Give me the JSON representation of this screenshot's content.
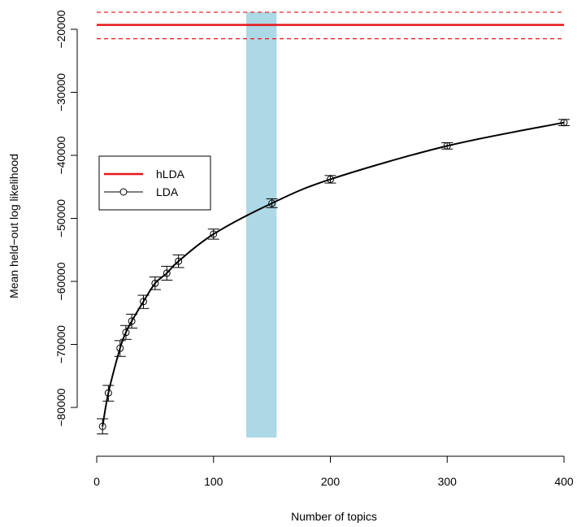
{
  "chart_data": {
    "type": "line",
    "title": "",
    "xlabel": "Number of topics",
    "ylabel": "Mean held−out log likelihood",
    "xlim": [
      0,
      400
    ],
    "ylim": [
      -85000,
      -17000
    ],
    "x_ticks": [
      0,
      100,
      200,
      300,
      400
    ],
    "x_tick_labels": [
      "0",
      "100",
      "200",
      "300",
      "400"
    ],
    "y_ticks": [
      -80000,
      -70000,
      -60000,
      -50000,
      -40000,
      -30000,
      -20000
    ],
    "y_tick_labels": [
      "−80000",
      "−70000",
      "−60000",
      "−50000",
      "−40000",
      "−30000",
      "−20000"
    ],
    "grid": false,
    "legend": {
      "position": "left",
      "entries": [
        {
          "label": "hLDA",
          "color": "#e8141a",
          "marker": "line"
        },
        {
          "label": "LDA",
          "color": "#000000",
          "marker": "line-circle"
        }
      ]
    },
    "series": [
      {
        "name": "LDA",
        "color": "#000000",
        "x": [
          5,
          10,
          20,
          25,
          30,
          40,
          50,
          60,
          70,
          100,
          150,
          200,
          300,
          400
        ],
        "y": [
          -83000,
          -77700,
          -70600,
          -68100,
          -66300,
          -63200,
          -60300,
          -58700,
          -56800,
          -52500,
          -47600,
          -43800,
          -38500,
          -34800
        ],
        "err_low": [
          -84200,
          -79000,
          -71900,
          -69200,
          -67400,
          -64300,
          -61300,
          -59800,
          -57800,
          -53300,
          -48300,
          -44400,
          -39000,
          -35300
        ],
        "err_high": [
          -81800,
          -76500,
          -69400,
          -67000,
          -65200,
          -62200,
          -59300,
          -57600,
          -55800,
          -51700,
          -46900,
          -43200,
          -38000,
          -34300
        ]
      },
      {
        "name": "hLDA",
        "color": "#e8141a",
        "value": -19300,
        "band_low": -21500,
        "band_high": -17300
      }
    ],
    "highlight_band": {
      "x_range": [
        128,
        154
      ],
      "color": "#add8e6"
    }
  }
}
